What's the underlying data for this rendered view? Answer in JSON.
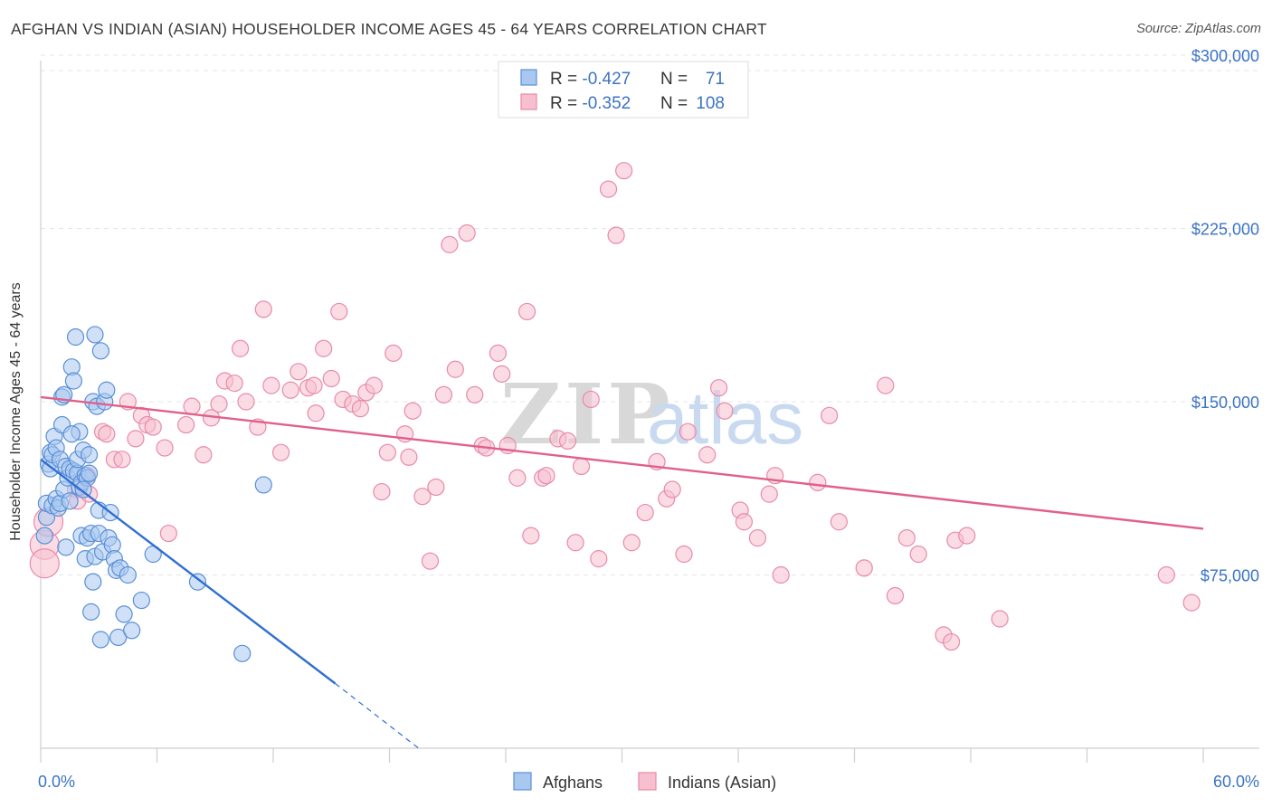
{
  "title": "AFGHAN VS INDIAN (ASIAN) HOUSEHOLDER INCOME AGES 45 - 64 YEARS CORRELATION CHART",
  "source": "Source: ZipAtlas.com",
  "watermark": {
    "zip": "ZIP",
    "atlas": "atlas"
  },
  "colors": {
    "afghans_fill": "#a9c8f0",
    "afghans_stroke": "#5a8fd6",
    "afghans_line": "#2f6fd1",
    "indians_fill": "#f7bfd0",
    "indians_stroke": "#e88aa8",
    "indians_line": "#e0608b",
    "tick_label": "#3b73c4",
    "grid": "#e4e4e4"
  },
  "legend": {
    "rows": [
      {
        "r_label": "R = ",
        "r_value": "-0.427",
        "n_label": "N = ",
        "n_value": "71"
      },
      {
        "r_label": "R = ",
        "r_value": "-0.352",
        "n_label": "N = ",
        "n_value": "108"
      }
    ]
  },
  "chart_data": {
    "type": "scatter",
    "title": "AFGHAN VS INDIAN (ASIAN) HOUSEHOLDER INCOME AGES 45 - 64 YEARS CORRELATION CHART",
    "xlabel": "",
    "ylabel": "Householder Income Ages 45 - 64 years",
    "xlim": [
      0,
      60
    ],
    "ylim": [
      0,
      310000
    ],
    "x_tick_labels": [
      "0.0%",
      "60.0%"
    ],
    "y_ticks": [
      75000,
      150000,
      225000,
      300000
    ],
    "y_tick_labels": [
      "$75,000",
      "$150,000",
      "$225,000",
      "$300,000"
    ],
    "grid": "horizontal dashed",
    "legend_position": "top-center",
    "series": [
      {
        "name": "Afghans",
        "trend": {
          "x": [
            0,
            15.2
          ],
          "y": [
            125000,
            28000
          ],
          "dashed_to": [
            19.5,
            0
          ]
        },
        "points": [
          [
            0.2,
            92000
          ],
          [
            0.3,
            100000
          ],
          [
            0.3,
            106000
          ],
          [
            0.4,
            123000
          ],
          [
            0.5,
            121000
          ],
          [
            0.5,
            128000
          ],
          [
            0.6,
            127000
          ],
          [
            0.6,
            105000
          ],
          [
            0.7,
            135000
          ],
          [
            0.8,
            130000
          ],
          [
            0.8,
            108000
          ],
          [
            0.9,
            104000
          ],
          [
            1.0,
            125000
          ],
          [
            1.0,
            106000
          ],
          [
            1.1,
            140000
          ],
          [
            1.1,
            152000
          ],
          [
            1.2,
            153000
          ],
          [
            1.2,
            112000
          ],
          [
            1.3,
            122000
          ],
          [
            1.3,
            87000
          ],
          [
            1.4,
            117000
          ],
          [
            1.5,
            107000
          ],
          [
            1.5,
            121000
          ],
          [
            1.6,
            165000
          ],
          [
            1.7,
            159000
          ],
          [
            1.7,
            120000
          ],
          [
            1.8,
            178000
          ],
          [
            1.9,
            119000
          ],
          [
            1.9,
            125000
          ],
          [
            2.0,
            137000
          ],
          [
            2.0,
            113000
          ],
          [
            2.1,
            115000
          ],
          [
            2.1,
            92000
          ],
          [
            2.2,
            129000
          ],
          [
            2.3,
            118000
          ],
          [
            2.3,
            82000
          ],
          [
            2.4,
            117000
          ],
          [
            2.4,
            91000
          ],
          [
            2.5,
            127000
          ],
          [
            2.5,
            119000
          ],
          [
            2.6,
            93000
          ],
          [
            2.6,
            59000
          ],
          [
            2.7,
            150000
          ],
          [
            2.7,
            72000
          ],
          [
            2.8,
            83000
          ],
          [
            2.9,
            148000
          ],
          [
            3.0,
            103000
          ],
          [
            3.0,
            93000
          ],
          [
            3.1,
            172000
          ],
          [
            3.1,
            47000
          ],
          [
            3.2,
            85000
          ],
          [
            3.3,
            150000
          ],
          [
            3.4,
            155000
          ],
          [
            3.5,
            91000
          ],
          [
            3.6,
            102000
          ],
          [
            3.7,
            88000
          ],
          [
            3.8,
            82000
          ],
          [
            3.9,
            77000
          ],
          [
            4.0,
            48000
          ],
          [
            4.1,
            78000
          ],
          [
            4.3,
            58000
          ],
          [
            4.5,
            75000
          ],
          [
            4.7,
            51000
          ],
          [
            5.2,
            64000
          ],
          [
            5.8,
            84000
          ],
          [
            8.1,
            72000
          ],
          [
            10.4,
            41000
          ],
          [
            11.5,
            114000
          ],
          [
            2.2,
            112000
          ],
          [
            1.6,
            136000
          ],
          [
            2.8,
            179000
          ]
        ]
      },
      {
        "name": "Indians (Asian)",
        "trend": {
          "x": [
            0,
            60
          ],
          "y": [
            152000,
            95000
          ]
        },
        "points": [
          [
            0.2,
            88000
          ],
          [
            0.2,
            80000
          ],
          [
            1.8,
            112000
          ],
          [
            1.9,
            107000
          ],
          [
            2.4,
            118000
          ],
          [
            2.5,
            110000
          ],
          [
            3.2,
            137000
          ],
          [
            3.4,
            136000
          ],
          [
            3.8,
            125000
          ],
          [
            4.2,
            125000
          ],
          [
            4.5,
            150000
          ],
          [
            4.9,
            134000
          ],
          [
            5.2,
            144000
          ],
          [
            5.5,
            140000
          ],
          [
            5.8,
            139000
          ],
          [
            6.4,
            130000
          ],
          [
            6.6,
            93000
          ],
          [
            7.5,
            140000
          ],
          [
            7.8,
            148000
          ],
          [
            8.4,
            127000
          ],
          [
            8.8,
            143000
          ],
          [
            9.2,
            149000
          ],
          [
            9.5,
            159000
          ],
          [
            10.0,
            158000
          ],
          [
            10.3,
            173000
          ],
          [
            10.6,
            150000
          ],
          [
            11.2,
            139000
          ],
          [
            11.5,
            190000
          ],
          [
            11.9,
            157000
          ],
          [
            12.4,
            128000
          ],
          [
            12.9,
            155000
          ],
          [
            13.3,
            163000
          ],
          [
            13.8,
            156000
          ],
          [
            14.1,
            157000
          ],
          [
            14.2,
            145000
          ],
          [
            14.6,
            173000
          ],
          [
            15.0,
            160000
          ],
          [
            15.4,
            189000
          ],
          [
            15.6,
            151000
          ],
          [
            16.1,
            149000
          ],
          [
            16.5,
            147000
          ],
          [
            16.8,
            154000
          ],
          [
            17.2,
            157000
          ],
          [
            17.6,
            111000
          ],
          [
            17.9,
            128000
          ],
          [
            18.2,
            171000
          ],
          [
            18.8,
            136000
          ],
          [
            19.0,
            126000
          ],
          [
            19.2,
            146000
          ],
          [
            19.7,
            109000
          ],
          [
            20.1,
            81000
          ],
          [
            20.4,
            113000
          ],
          [
            20.8,
            153000
          ],
          [
            21.1,
            218000
          ],
          [
            21.4,
            164000
          ],
          [
            22.0,
            223000
          ],
          [
            22.4,
            153000
          ],
          [
            22.8,
            131000
          ],
          [
            23.0,
            130000
          ],
          [
            23.6,
            171000
          ],
          [
            23.8,
            162000
          ],
          [
            24.1,
            131000
          ],
          [
            24.6,
            117000
          ],
          [
            25.1,
            189000
          ],
          [
            25.3,
            92000
          ],
          [
            25.9,
            117000
          ],
          [
            26.1,
            118000
          ],
          [
            26.7,
            134000
          ],
          [
            27.2,
            133000
          ],
          [
            27.6,
            89000
          ],
          [
            27.9,
            122000
          ],
          [
            28.4,
            151000
          ],
          [
            28.8,
            82000
          ],
          [
            29.3,
            242000
          ],
          [
            29.7,
            222000
          ],
          [
            30.1,
            250000
          ],
          [
            30.5,
            89000
          ],
          [
            31.2,
            102000
          ],
          [
            31.8,
            124000
          ],
          [
            32.3,
            108000
          ],
          [
            32.6,
            112000
          ],
          [
            33.2,
            84000
          ],
          [
            33.4,
            137000
          ],
          [
            34.4,
            127000
          ],
          [
            35.0,
            156000
          ],
          [
            35.3,
            146000
          ],
          [
            36.1,
            103000
          ],
          [
            36.3,
            98000
          ],
          [
            37.0,
            91000
          ],
          [
            37.6,
            110000
          ],
          [
            37.9,
            118000
          ],
          [
            38.2,
            75000
          ],
          [
            40.1,
            115000
          ],
          [
            40.7,
            144000
          ],
          [
            41.2,
            98000
          ],
          [
            42.5,
            78000
          ],
          [
            43.6,
            157000
          ],
          [
            44.7,
            91000
          ],
          [
            44.1,
            66000
          ],
          [
            45.3,
            84000
          ],
          [
            46.6,
            49000
          ],
          [
            47.0,
            46000
          ],
          [
            47.2,
            90000
          ],
          [
            47.8,
            92000
          ],
          [
            49.5,
            56000
          ],
          [
            58.1,
            75000
          ],
          [
            59.4,
            63000
          ],
          [
            0.4,
            98000
          ]
        ]
      }
    ]
  }
}
